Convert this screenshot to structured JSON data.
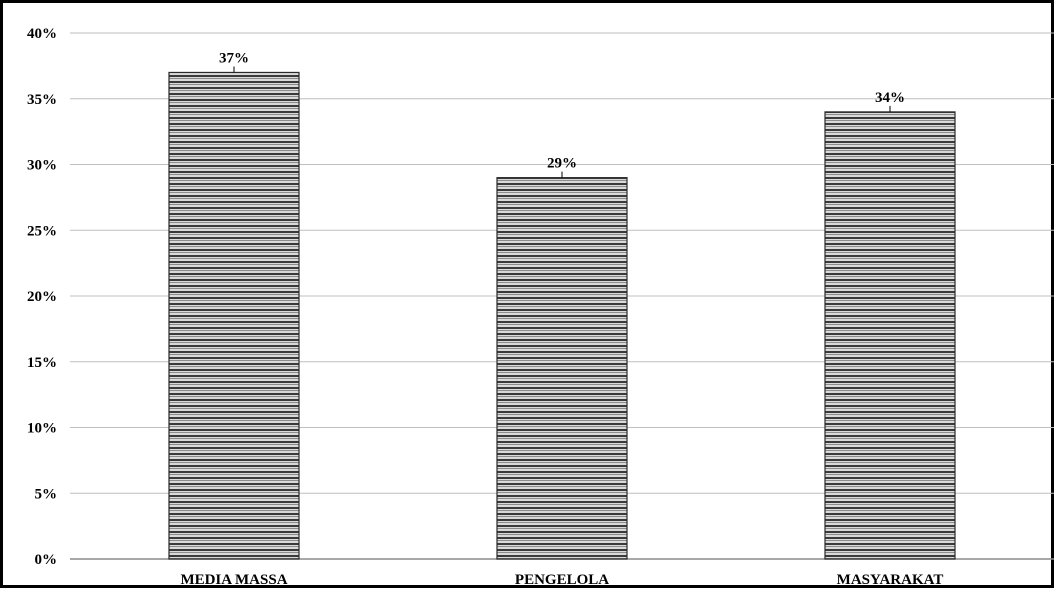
{
  "chart_data": {
    "type": "bar",
    "categories": [
      "MEDIA MASSA",
      "PENGELOLA",
      "MASYARAKAT"
    ],
    "values": [
      37,
      29,
      34
    ],
    "data_labels": [
      "37%",
      "29%",
      "34%"
    ],
    "title": "",
    "xlabel": "",
    "ylabel": "",
    "ylim": [
      0,
      40
    ],
    "yticks": [
      0,
      5,
      10,
      15,
      20,
      25,
      30,
      35,
      40
    ],
    "ytick_labels": [
      "0%",
      "5%",
      "10%",
      "15%",
      "20%",
      "25%",
      "30%",
      "35%",
      "40%"
    ],
    "grid": true,
    "legend": "none",
    "colors": {
      "bar_dark": "#3a3a3a",
      "bar_mid": "#8c8c8c",
      "bar_light": "#d9d9d9",
      "grid": "#bfbfbf",
      "border": "#000000"
    }
  }
}
